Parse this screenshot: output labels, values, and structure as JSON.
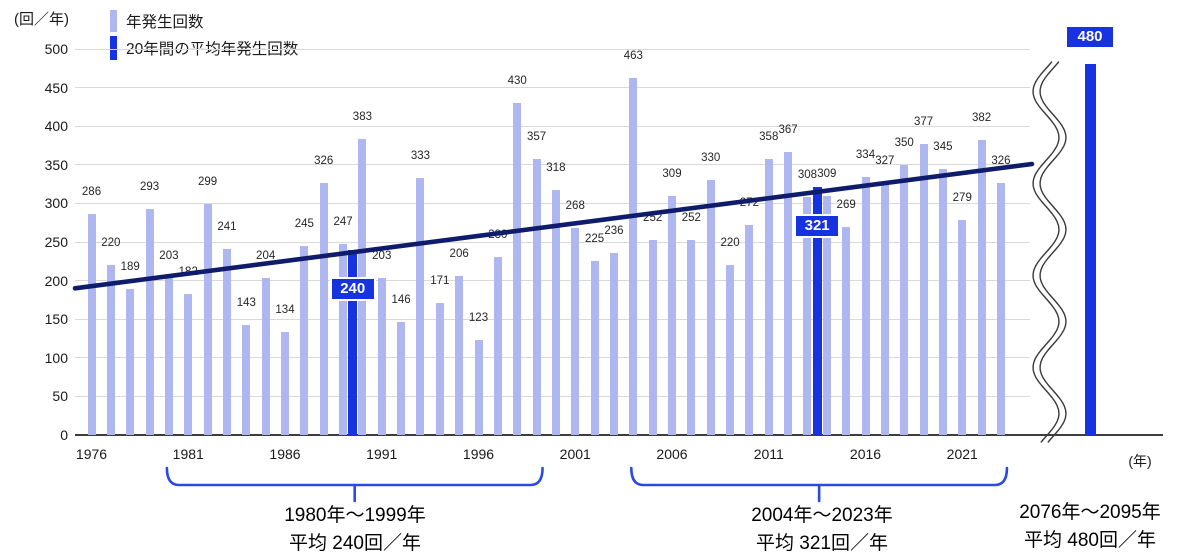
{
  "chart_data": {
    "type": "bar",
    "title": "",
    "y_unit": "(回／年)",
    "x_unit": "(年)",
    "ylim": [
      0,
      500
    ],
    "ytick_step": 50,
    "yticks": [
      0,
      50,
      100,
      150,
      200,
      250,
      300,
      350,
      400,
      450,
      500
    ],
    "xticks": [
      1976,
      1981,
      1986,
      1991,
      1996,
      2001,
      2006,
      2011,
      2016,
      2021
    ],
    "grid": true,
    "legend_position": "top-left",
    "years": [
      1976,
      1977,
      1978,
      1979,
      1980,
      1981,
      1982,
      1983,
      1984,
      1985,
      1986,
      1987,
      1988,
      1989,
      1990,
      1991,
      1992,
      1993,
      1994,
      1995,
      1996,
      1997,
      1998,
      1999,
      2000,
      2001,
      2002,
      2003,
      2004,
      2005,
      2006,
      2007,
      2008,
      2009,
      2010,
      2011,
      2012,
      2013,
      2014,
      2015,
      2016,
      2017,
      2018,
      2019,
      2020,
      2021,
      2022,
      2023
    ],
    "series": [
      {
        "name": "年発生回数",
        "color": "#aeb7ef",
        "values": [
          286,
          220,
          189,
          293,
          203,
          182,
          299,
          241,
          143,
          204,
          134,
          245,
          326,
          247,
          383,
          203,
          146,
          333,
          171,
          206,
          123,
          230,
          430,
          357,
          318,
          268,
          225,
          236,
          463,
          252,
          309,
          252,
          330,
          220,
          272,
          358,
          367,
          308,
          309,
          269,
          334,
          327,
          350,
          377,
          345,
          279,
          382,
          326
        ]
      },
      {
        "name": "20年間の平均年発生回数",
        "color": "#1733e0",
        "bars": [
          {
            "center_year": 1989.5,
            "value": 240
          },
          {
            "center_year": 2013.5,
            "value": 321
          }
        ]
      }
    ],
    "projection": {
      "period": "2076年～2095年",
      "value": 480
    },
    "trend_line": {
      "color": "#0e1c6b",
      "from_value": 190,
      "to_value": 351
    },
    "axis_break": true,
    "annotations": [
      {
        "range": "1980年～1999年",
        "average": "平均 240回／年",
        "from_year": 1980,
        "to_year": 1999
      },
      {
        "range": "2004年～2023年",
        "average": "平均 321回／年",
        "from_year": 2004,
        "to_year": 2023
      },
      {
        "range": "2076年～2095年",
        "average": "平均 480回／年"
      }
    ],
    "colors": {
      "bar_light": "#aeb7ef",
      "bar_dark": "#1733e0",
      "trend": "#0e1c6b",
      "brace": "#2b4be0",
      "grid": "#d9d9d9",
      "axis": "#3d3d3d",
      "value_label": "#262626"
    }
  }
}
